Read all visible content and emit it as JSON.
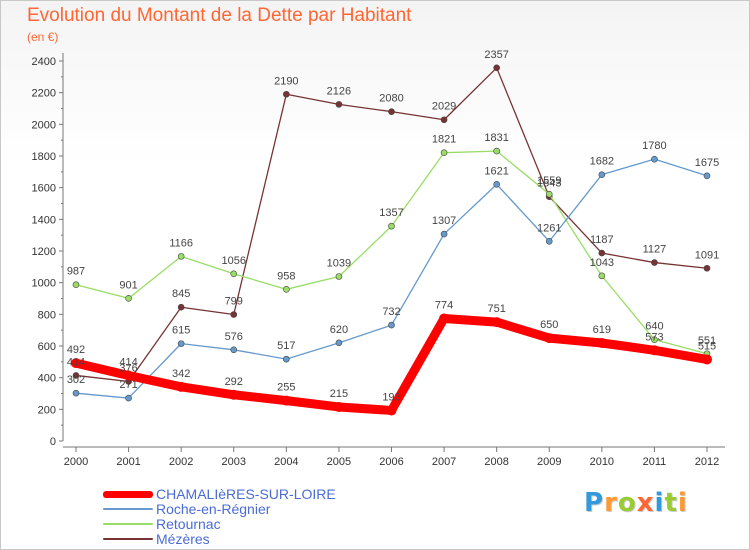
{
  "chart_data": {
    "type": "line",
    "title": "Evolution du Montant de la Dette par Habitant",
    "subtitle": "(en €)",
    "x": [
      "2000",
      "2001",
      "2002",
      "2003",
      "2004",
      "2005",
      "2006",
      "2007",
      "2008",
      "2009",
      "2010",
      "2011",
      "2012"
    ],
    "ylim": [
      0,
      2400
    ],
    "yticks": [
      0,
      200,
      400,
      600,
      800,
      1000,
      1200,
      1400,
      1600,
      1800,
      2000,
      2200,
      2400
    ],
    "grid": false,
    "legend_position": "bottom-left",
    "series": [
      {
        "name": "CHAMALIèRES-SUR-LOIRE",
        "color": "#ff0000",
        "values": [
          492,
          414,
          342,
          292,
          255,
          215,
          193,
          774,
          751,
          650,
          619,
          573,
          515
        ]
      },
      {
        "name": "Roche-en-Régnier",
        "color": "#6699cc",
        "values": [
          302,
          271,
          615,
          576,
          517,
          620,
          732,
          1307,
          1621,
          1261,
          1682,
          1780,
          1675
        ]
      },
      {
        "name": "Retournac",
        "color": "#99dd66",
        "values": [
          987,
          901,
          1166,
          1056,
          958,
          1039,
          1357,
          1821,
          1831,
          1559,
          1043,
          640,
          551
        ]
      },
      {
        "name": "Mézères",
        "color": "#773333",
        "values": [
          414,
          376,
          845,
          799,
          2190,
          2126,
          2080,
          2029,
          2357,
          1543,
          1187,
          1127,
          1091
        ]
      }
    ]
  },
  "logo": {
    "text": "Proxiti",
    "letters": [
      {
        "ch": "P",
        "color": "#3399dd"
      },
      {
        "ch": "r",
        "color": "#ff9933"
      },
      {
        "ch": "o",
        "color": "#99cc33"
      },
      {
        "ch": "x",
        "color": "#ff6633"
      },
      {
        "ch": "i",
        "color": "#3399dd"
      },
      {
        "ch": "t",
        "color": "#99cc33"
      },
      {
        "ch": "i",
        "color": "#ff9933"
      }
    ]
  }
}
